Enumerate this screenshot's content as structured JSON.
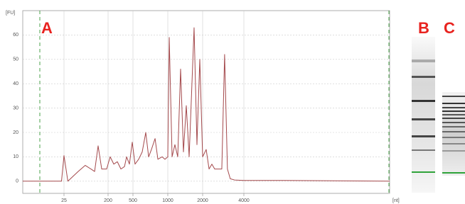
{
  "chart_data": {
    "type": "line",
    "ylabel": "[FU]",
    "xlabel": "[nt]",
    "xscale": "log",
    "x": [
      3,
      22,
      25,
      30,
      49,
      68,
      89,
      106,
      125,
      148,
      187,
      216,
      247,
      281,
      321,
      366,
      396,
      439,
      487,
      521,
      560,
      601,
      645,
      683,
      722,
      776,
      821,
      893,
      945,
      1000,
      1029,
      1089,
      1152,
      1219,
      1290,
      1365,
      1445,
      1529,
      1687,
      1786,
      1890,
      2000,
      2123,
      2228,
      2336,
      2449,
      2630,
      2760,
      2893,
      3034,
      3182,
      3418,
      4000,
      7840,
      45000
    ],
    "series": [
      {
        "color": "#a4494c",
        "values": [
          0,
          0,
          10.5,
          0,
          4,
          6.5,
          5,
          4,
          14.5,
          5,
          5,
          10,
          7,
          8,
          5,
          6,
          10,
          7,
          16,
          7,
          9,
          12,
          20,
          10,
          13,
          17.5,
          9,
          10,
          9,
          10,
          59,
          10,
          15,
          10,
          46,
          12,
          31,
          10,
          63,
          15,
          50,
          10,
          13,
          5,
          7,
          5,
          5,
          5,
          52,
          5,
          1,
          0.5,
          0.3,
          0.3,
          0
        ]
      }
    ],
    "xlim": [
      3,
      45000
    ],
    "xticks": [
      25,
      200,
      500,
      1000,
      2000,
      4000
    ],
    "ylim": [
      -5,
      70
    ],
    "yticks": [
      0,
      10,
      20,
      30,
      40,
      50,
      60
    ],
    "grid": true
  },
  "panel_labels": [
    "A",
    "B",
    "C"
  ]
}
